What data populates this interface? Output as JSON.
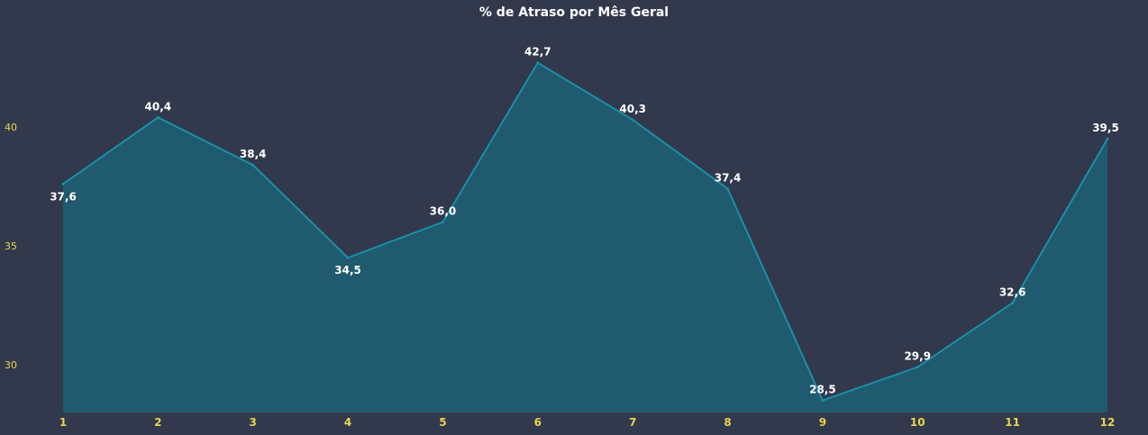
{
  "chart_data": {
    "type": "area",
    "title": "% de Atraso por Mês Geral",
    "xlabel": "",
    "ylabel": "",
    "x": [
      "1",
      "2",
      "3",
      "4",
      "5",
      "6",
      "7",
      "8",
      "9",
      "10",
      "11",
      "12"
    ],
    "series": [
      {
        "values": [
          37.6,
          40.4,
          38.4,
          34.5,
          36.0,
          42.7,
          40.3,
          37.4,
          28.5,
          29.9,
          32.6,
          39.5
        ],
        "labels": [
          "37,6",
          "40,4",
          "38,4",
          "34,5",
          "36,0",
          "42,7",
          "40,3",
          "37,4",
          "28,5",
          "29,9",
          "32,6",
          "39,5"
        ]
      }
    ],
    "yticks": [
      "30",
      "35",
      "40"
    ],
    "ylim": [
      27.9,
      45.0
    ],
    "grid": false,
    "legend": "none",
    "colors": {
      "background": "#32394d",
      "line": "#1a8fa8",
      "fill": "#1f5a6e",
      "axis_text": "#e8d44d",
      "label_text": "#ffffff"
    }
  }
}
